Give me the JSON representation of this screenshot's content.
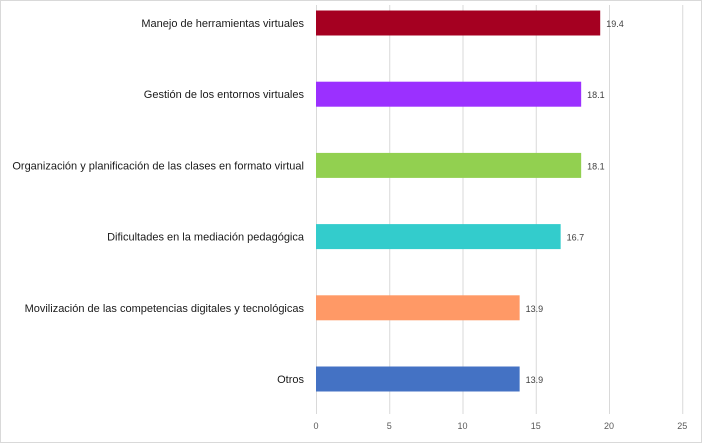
{
  "chart_data": {
    "type": "bar",
    "orientation": "horizontal",
    "categories": [
      "Manejo de herramientas virtuales",
      "Gestión de los entornos virtuales",
      "Organización y planificación de las clases en formato virtual",
      "Dificultades en la mediación pedagógica",
      "Movilización de las competencias digitales y tecnológicas",
      "Otros"
    ],
    "values": [
      19.4,
      18.1,
      18.1,
      16.7,
      13.9,
      13.9
    ],
    "value_labels": [
      "19.4",
      "18.1",
      "18.1",
      "16.7",
      "13.9",
      "13.9"
    ],
    "colors": [
      "#a50021",
      "#9b30ff",
      "#92d050",
      "#33cccc",
      "#ff9966",
      "#4472c4"
    ],
    "xlim": [
      0,
      25
    ],
    "xticks": [
      0,
      5,
      10,
      15,
      20,
      25
    ],
    "grid": true,
    "title": "",
    "xlabel": "",
    "ylabel": ""
  }
}
